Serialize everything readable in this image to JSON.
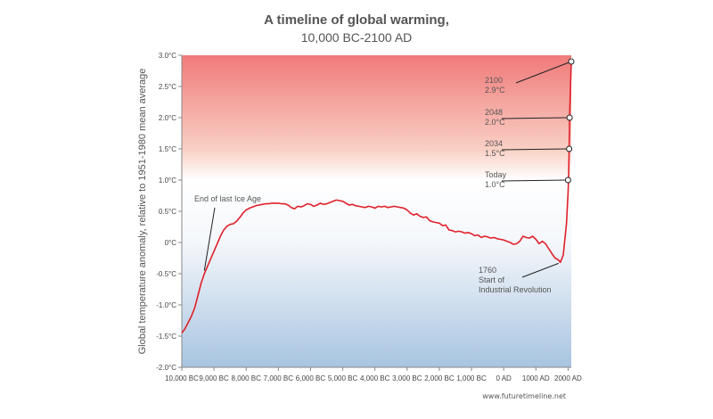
{
  "title": {
    "line1": "A timeline of global warming,",
    "line2": "10,000 BC-2100 AD"
  },
  "source": "www.futuretimeline.net",
  "colors": {
    "line": "#e0202a",
    "warm": "#f07a7a",
    "cool": "#a8c4e0",
    "text": "#555555",
    "tick": "#444444"
  },
  "chart_data": {
    "type": "line",
    "title": "A timeline of global warming, 10,000 BC-2100 AD",
    "xlabel": "",
    "ylabel": "Global temperature anomaly, relative to 1951-1980 mean average",
    "xlim": [
      -10000,
      2100
    ],
    "ylim": [
      -2.0,
      3.0
    ],
    "y_ticks": [
      {
        "value": 3.0,
        "label": "3.0°C"
      },
      {
        "value": 2.5,
        "label": "2.5°C"
      },
      {
        "value": 2.0,
        "label": "2.0°C"
      },
      {
        "value": 1.5,
        "label": "1.5°C"
      },
      {
        "value": 1.0,
        "label": "1.0°C"
      },
      {
        "value": 0.5,
        "label": "0.5°C"
      },
      {
        "value": 0.0,
        "label": "0°C"
      },
      {
        "value": -0.5,
        "label": "-0.5°C"
      },
      {
        "value": -1.0,
        "label": "-1.0°C"
      },
      {
        "value": -1.5,
        "label": "-1.5°C"
      },
      {
        "value": -2.0,
        "label": "-2.0°C"
      }
    ],
    "x_ticks": [
      {
        "value": -10000,
        "label": "10,000 BC"
      },
      {
        "value": -9000,
        "label": "9,000 BC"
      },
      {
        "value": -8000,
        "label": "8,000 BC"
      },
      {
        "value": -7000,
        "label": "7,000 BC"
      },
      {
        "value": -6000,
        "label": "6,000 BC"
      },
      {
        "value": -5000,
        "label": "5,000 BC"
      },
      {
        "value": -4000,
        "label": "4,000 BC"
      },
      {
        "value": -3000,
        "label": "3,000 BC"
      },
      {
        "value": -2000,
        "label": "2,000 BC"
      },
      {
        "value": -1000,
        "label": "1,000 BC"
      },
      {
        "value": 0,
        "label": "0 AD"
      },
      {
        "value": 1000,
        "label": "1000 AD"
      },
      {
        "value": 2000,
        "label": "2000 AD"
      }
    ],
    "grid": false,
    "background": "gradient red (top) to white (0°C) to blue (bottom)",
    "series": [
      {
        "x": [
          -10000,
          -9900,
          -9800,
          -9700,
          -9600,
          -9500,
          -9400,
          -9300,
          -9200,
          -9100,
          -9000,
          -8900,
          -8800,
          -8700,
          -8600,
          -8500,
          -8400,
          -8300,
          -8200,
          -8100,
          -8000,
          -7900,
          -7800,
          -7700,
          -7600,
          -7500,
          -7400,
          -7300,
          -7200,
          -7100,
          -7000,
          -6900,
          -6800,
          -6700,
          -6600,
          -6500,
          -6400,
          -6300,
          -6200,
          -6100,
          -6000,
          -5900,
          -5800,
          -5700,
          -5600,
          -5500,
          -5400,
          -5300,
          -5200,
          -5100,
          -5000,
          -4900,
          -4800,
          -4700,
          -4600,
          -4500,
          -4400,
          -4300,
          -4200,
          -4100,
          -4000,
          -3900,
          -3800,
          -3700,
          -3600,
          -3500,
          -3400,
          -3300,
          -3200,
          -3100,
          -3000,
          -2900,
          -2800,
          -2700,
          -2600,
          -2500,
          -2400,
          -2300,
          -2200,
          -2100,
          -2000,
          -1900,
          -1800,
          -1700,
          -1600,
          -1500,
          -1400,
          -1300,
          -1200,
          -1100,
          -1000,
          -900,
          -800,
          -700,
          -600,
          -500,
          -400,
          -300,
          -200,
          -100,
          0,
          100,
          200,
          300,
          400,
          500,
          600,
          700,
          800,
          900,
          1000,
          1100,
          1200,
          1300,
          1400,
          1500,
          1600,
          1700,
          1760,
          1850,
          1950,
          2000,
          2015,
          2034,
          2048,
          2070,
          2100
        ],
        "y": [
          -1.45,
          -1.38,
          -1.28,
          -1.18,
          -1.05,
          -0.85,
          -0.65,
          -0.5,
          -0.38,
          -0.26,
          -0.14,
          -0.02,
          0.1,
          0.2,
          0.26,
          0.29,
          0.3,
          0.34,
          0.4,
          0.47,
          0.52,
          0.55,
          0.57,
          0.59,
          0.6,
          0.61,
          0.62,
          0.62,
          0.63,
          0.63,
          0.63,
          0.62,
          0.62,
          0.6,
          0.56,
          0.54,
          0.58,
          0.57,
          0.59,
          0.62,
          0.61,
          0.58,
          0.6,
          0.63,
          0.61,
          0.62,
          0.64,
          0.66,
          0.68,
          0.67,
          0.66,
          0.63,
          0.6,
          0.61,
          0.59,
          0.58,
          0.57,
          0.56,
          0.58,
          0.57,
          0.55,
          0.58,
          0.57,
          0.58,
          0.56,
          0.57,
          0.58,
          0.57,
          0.56,
          0.55,
          0.52,
          0.47,
          0.44,
          0.46,
          0.42,
          0.4,
          0.41,
          0.35,
          0.33,
          0.32,
          0.31,
          0.27,
          0.28,
          0.2,
          0.19,
          0.17,
          0.18,
          0.17,
          0.15,
          0.16,
          0.14,
          0.11,
          0.12,
          0.08,
          0.1,
          0.09,
          0.07,
          0.08,
          0.06,
          0.05,
          0.04,
          0.02,
          0.0,
          -0.03,
          -0.02,
          0.02,
          0.1,
          0.08,
          0.07,
          0.1,
          0.05,
          -0.02,
          0.02,
          -0.02,
          -0.1,
          -0.18,
          -0.25,
          -0.28,
          -0.32,
          -0.2,
          0.3,
          0.8,
          1.0,
          1.5,
          2.0,
          2.4,
          2.9
        ]
      }
    ],
    "annotations": [
      {
        "lines": [
          "End of last Ice Age"
        ],
        "x": -9300,
        "y": -0.45
      },
      {
        "lines": [
          "1760",
          "Start of",
          "Industrial Revolution"
        ],
        "x": 1760,
        "y": -0.32
      },
      {
        "lines": [
          "Today",
          "1.0°C"
        ],
        "x": 2000,
        "y": 1.0
      },
      {
        "lines": [
          "2034",
          "1.5°C"
        ],
        "x": 2034,
        "y": 1.5
      },
      {
        "lines": [
          "2048",
          "2.0°C"
        ],
        "x": 2048,
        "y": 2.0
      },
      {
        "lines": [
          "2100",
          "2.9°C"
        ],
        "x": 2100,
        "y": 2.9
      }
    ]
  }
}
